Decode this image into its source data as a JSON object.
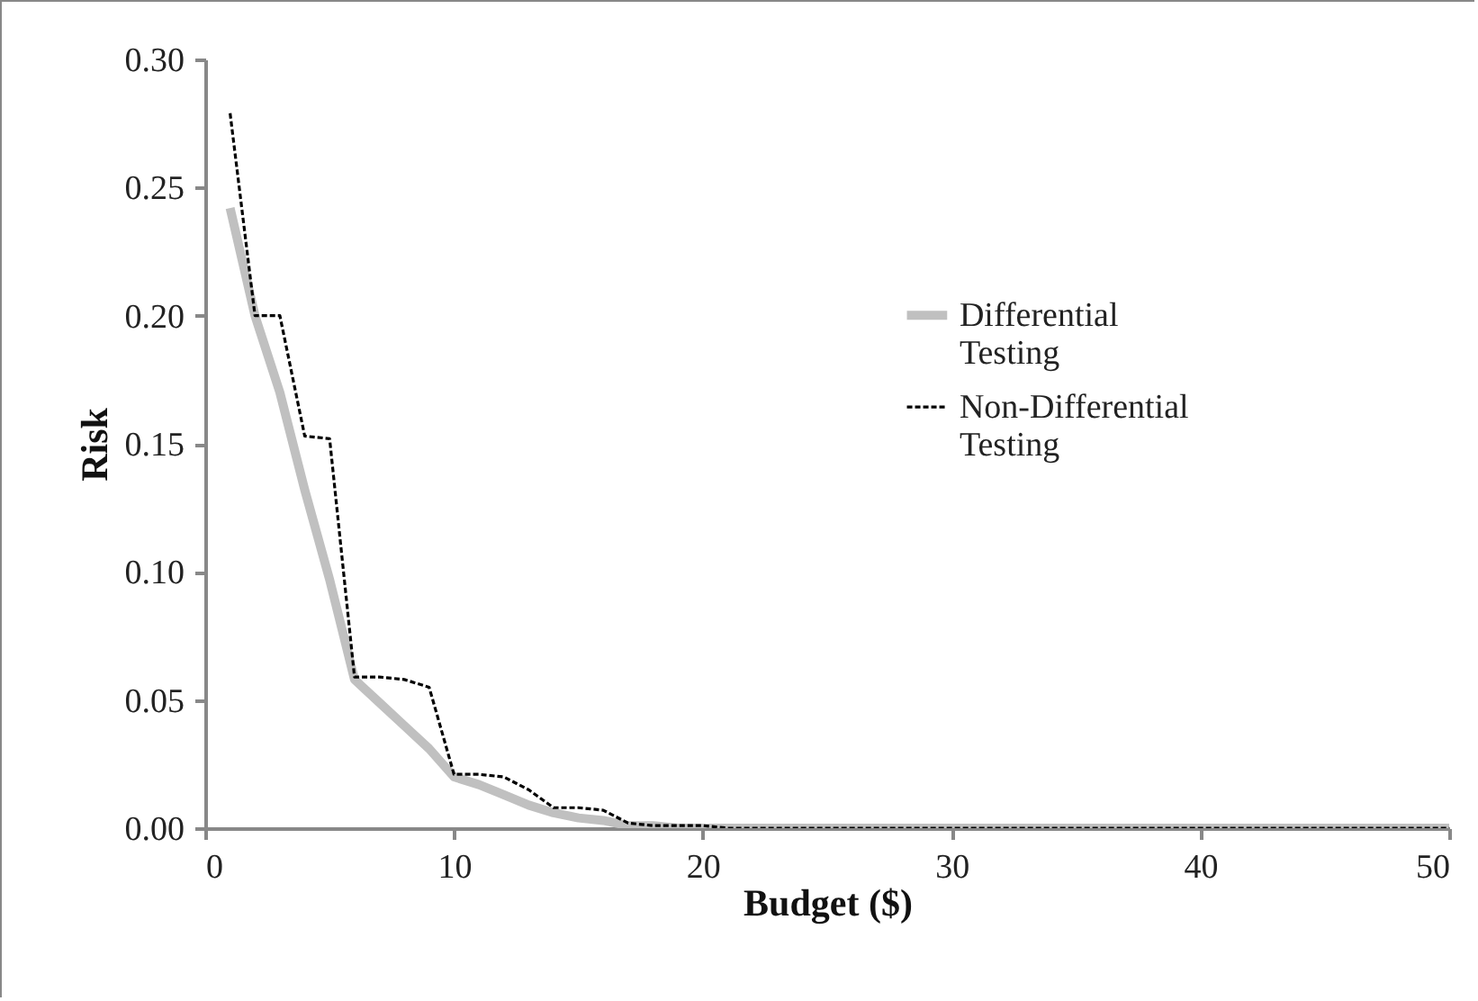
{
  "chart_data": {
    "type": "line",
    "xlabel": "Budget ($)",
    "ylabel": "Risk",
    "x": [
      1,
      2,
      3,
      4,
      5,
      6,
      7,
      8,
      9,
      10,
      11,
      12,
      13,
      14,
      15,
      16,
      17,
      18,
      19,
      20,
      21,
      22,
      23,
      24,
      25,
      26,
      27,
      28,
      29,
      30,
      31,
      32,
      33,
      34,
      35,
      36,
      37,
      38,
      39,
      40,
      41,
      42,
      43,
      44,
      45,
      46,
      47,
      48,
      49,
      50
    ],
    "series": [
      {
        "name": "Differential Testing",
        "color": "#c0c0c0",
        "line_style": "solid",
        "values": [
          0.242,
          0.2,
          0.17,
          0.132,
          0.097,
          0.058,
          0.049,
          0.04,
          0.031,
          0.02,
          0.017,
          0.013,
          0.009,
          0.006,
          0.004,
          0.003,
          0.001,
          0.001,
          0,
          0,
          0,
          0,
          0,
          0,
          0,
          0,
          0,
          0,
          0,
          0,
          0,
          0,
          0,
          0,
          0,
          0,
          0,
          0,
          0,
          0,
          0,
          0,
          0,
          0,
          0,
          0,
          0,
          0,
          0,
          0
        ]
      },
      {
        "name": "Non-Differential Testing",
        "color": "#000000",
        "line_style": "dashed",
        "values": [
          0.279,
          0.2,
          0.2,
          0.153,
          0.152,
          0.059,
          0.059,
          0.058,
          0.055,
          0.021,
          0.021,
          0.02,
          0.015,
          0.008,
          0.008,
          0.007,
          0.002,
          0.001,
          0.001,
          0.001,
          0,
          0,
          0,
          0,
          0,
          0,
          0,
          0,
          0,
          0,
          0,
          0,
          0,
          0,
          0,
          0,
          0,
          0,
          0,
          0,
          0,
          0,
          0,
          0,
          0,
          0,
          0,
          0,
          0,
          0
        ]
      }
    ],
    "xlim": [
      0,
      50
    ],
    "xticks": [
      0,
      10,
      20,
      30,
      40,
      50
    ],
    "ylim": [
      0,
      0.3
    ],
    "yticks": [
      {
        "value": 0,
        "label": "0.00"
      },
      {
        "value": 0.05,
        "label": "0.05"
      },
      {
        "value": 0.1,
        "label": "0.10"
      },
      {
        "value": 0.15,
        "label": "0.15"
      },
      {
        "value": 0.2,
        "label": "0.20"
      },
      {
        "value": 0.25,
        "label": "0.25"
      },
      {
        "value": 0.3,
        "label": "0.30"
      }
    ],
    "legend": "right",
    "grid": false,
    "marker": "none"
  }
}
